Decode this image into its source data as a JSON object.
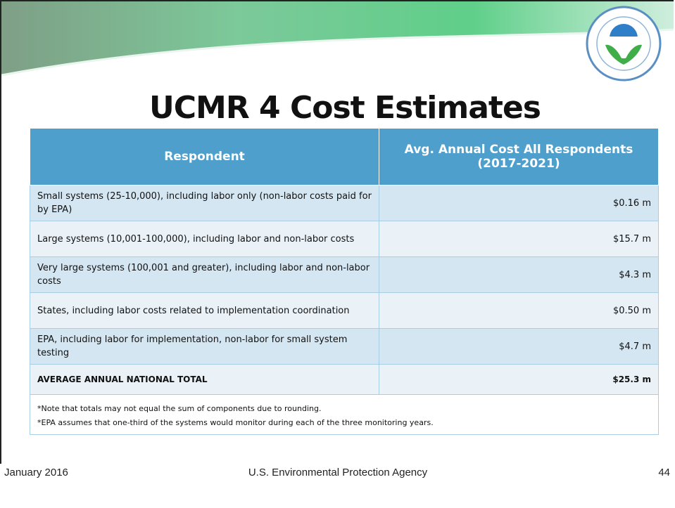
{
  "slide": {
    "title": "UCMR 4 Cost Estimates",
    "table": {
      "columns": [
        "Respondent",
        "Avg. Annual Cost All Respondents (2017-2021)"
      ],
      "rows": [
        [
          "Small systems (25-10,000), including labor only (non-labor costs paid for by EPA)",
          "$0.16 m"
        ],
        [
          "Large systems (10,001-100,000), including labor and non-labor costs",
          "$15.7 m"
        ],
        [
          "Very large systems (100,001 and greater), including labor and non-labor costs",
          "$4.3 m"
        ],
        [
          "States, including labor costs related to implementation coordination",
          "$0.50 m"
        ],
        [
          "EPA, including labor for implementation, non-labor for small system testing",
          "$4.7 m"
        ]
      ],
      "total": [
        "AVERAGE ANNUAL NATIONAL TOTAL",
        "$25.3 m"
      ],
      "notes": [
        "*Note that totals may not equal the sum of components due to rounding.",
        "*EPA assumes that one-third of the systems would monitor during each of the three monitoring years."
      ]
    },
    "footer": {
      "date": "January 2016",
      "agency": "U.S. Environmental Protection Agency",
      "page": "44"
    }
  }
}
